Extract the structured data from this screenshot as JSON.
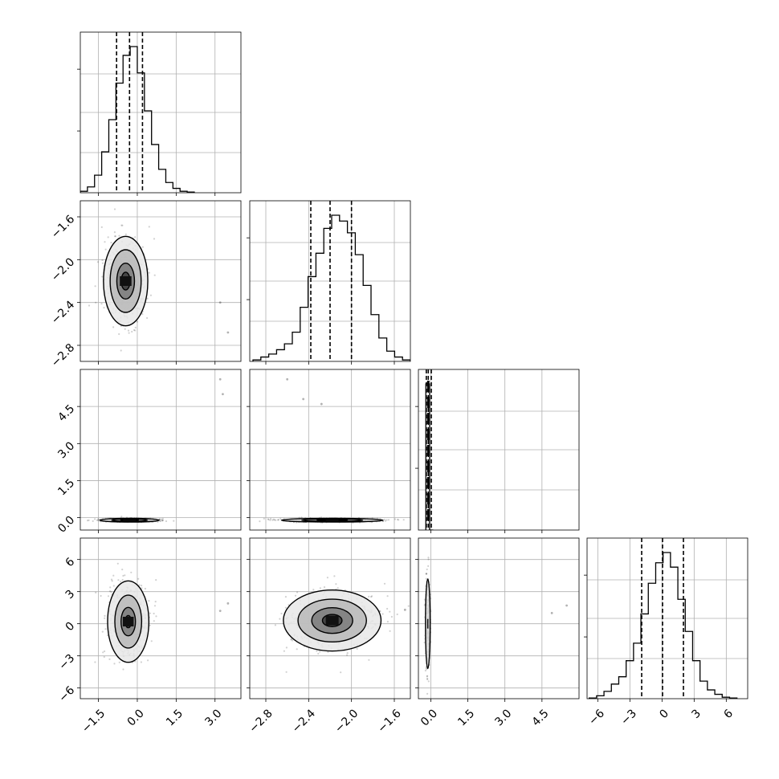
{
  "chart_data": {
    "type": "corner",
    "title": "",
    "grid": true,
    "parameters": [
      {
        "range": [
          -2.2,
          4.0
        ],
        "ticks": [
          -1.5,
          0.0,
          1.5,
          3.0
        ],
        "tick_labels": [
          "−1.5",
          "0.0",
          "1.5",
          "3.0"
        ],
        "quantiles": [
          -0.8,
          -0.3,
          0.2
        ]
      },
      {
        "range": [
          -2.95,
          -1.45
        ],
        "ticks": [
          -2.8,
          -2.4,
          -2.0,
          -1.6
        ],
        "tick_labels": [
          "−2.8",
          "−2.4",
          "−2.0",
          "−1.6"
        ],
        "quantiles": [
          -2.38,
          -2.2,
          -2.0
        ]
      },
      {
        "range": [
          -0.5,
          6.0
        ],
        "ticks": [
          0.0,
          1.5,
          3.0,
          4.5
        ],
        "tick_labels": [
          "0.0",
          "1.5",
          "3.0",
          "4.5"
        ],
        "quantiles": [
          -0.18,
          -0.1,
          0.02
        ]
      },
      {
        "range": [
          -7.0,
          8.0
        ],
        "ticks": [
          -6,
          -3,
          0,
          3,
          6
        ],
        "tick_labels": [
          "−6",
          "−3",
          "0",
          "3",
          "6"
        ],
        "quantiles": [
          -1.9,
          0.05,
          2.0
        ]
      }
    ],
    "histograms": [
      {
        "values": [
          0.01,
          0.04,
          0.12,
          0.28,
          0.5,
          0.75,
          0.94,
          1.0,
          0.82,
          0.56,
          0.33,
          0.16,
          0.07,
          0.03,
          0.01,
          0.005
        ]
      },
      {
        "values": [
          0.01,
          0.03,
          0.05,
          0.08,
          0.12,
          0.2,
          0.37,
          0.58,
          0.74,
          0.91,
          1.0,
          0.96,
          0.88,
          0.73,
          0.52,
          0.32,
          0.16,
          0.07,
          0.03,
          0.01
        ]
      },
      {
        "values": [
          1.0,
          0.0
        ]
      },
      {
        "values": [
          0.005,
          0.02,
          0.05,
          0.1,
          0.15,
          0.26,
          0.38,
          0.58,
          0.79,
          0.93,
          1.0,
          0.9,
          0.68,
          0.46,
          0.26,
          0.12,
          0.06,
          0.03,
          0.01,
          0.005
        ]
      }
    ],
    "scatter_blobs": [
      {
        "row": 1,
        "col": 0,
        "center": [
          -0.45,
          -2.2
        ],
        "spread": [
          0.45,
          0.22
        ],
        "level_scale": [
          1.0,
          0.7,
          0.4,
          0.2
        ]
      },
      {
        "row": 2,
        "col": 0,
        "center": [
          -0.3,
          -0.1
        ],
        "spread": [
          0.6,
          0.04
        ],
        "level_scale": [
          1.0,
          0.6,
          0.3
        ]
      },
      {
        "row": 2,
        "col": 1,
        "center": [
          -2.18,
          -0.1
        ],
        "spread": [
          0.25,
          0.04
        ],
        "level_scale": [
          1.0,
          0.6,
          0.3
        ]
      },
      {
        "row": 3,
        "col": 0,
        "center": [
          -0.35,
          0.2
        ],
        "spread": [
          0.42,
          2.0
        ],
        "level_scale": [
          1.0,
          0.65,
          0.35,
          0.15
        ]
      },
      {
        "row": 3,
        "col": 1,
        "center": [
          -2.18,
          0.3
        ],
        "spread": [
          0.24,
          1.5
        ],
        "level_scale": [
          1.0,
          0.7,
          0.42,
          0.2
        ]
      },
      {
        "row": 3,
        "col": 2,
        "center": [
          -0.12,
          0.0
        ],
        "spread": [
          0.05,
          2.2
        ],
        "level_scale": [
          1.0
        ]
      }
    ],
    "outliers": [
      {
        "row": 1,
        "col": 0,
        "x": 3.2,
        "y": -2.4
      },
      {
        "row": 1,
        "col": 0,
        "x": 3.5,
        "y": -2.68
      },
      {
        "row": 2,
        "col": 0,
        "x": 3.2,
        "y": 5.6
      },
      {
        "row": 2,
        "col": 0,
        "x": 3.3,
        "y": 5.0
      },
      {
        "row": 2,
        "col": 1,
        "x": -2.6,
        "y": 5.6
      },
      {
        "row": 2,
        "col": 1,
        "x": -2.45,
        "y": 4.8
      },
      {
        "row": 2,
        "col": 1,
        "x": -2.28,
        "y": 4.6
      },
      {
        "row": 3,
        "col": 0,
        "x": 3.2,
        "y": 1.2
      },
      {
        "row": 3,
        "col": 0,
        "x": 3.5,
        "y": 1.9
      },
      {
        "row": 3,
        "col": 1,
        "x": -1.5,
        "y": 1.3
      },
      {
        "row": 3,
        "col": 2,
        "x": 4.9,
        "y": 1.0
      },
      {
        "row": 3,
        "col": 2,
        "x": 5.5,
        "y": 1.7
      }
    ]
  }
}
